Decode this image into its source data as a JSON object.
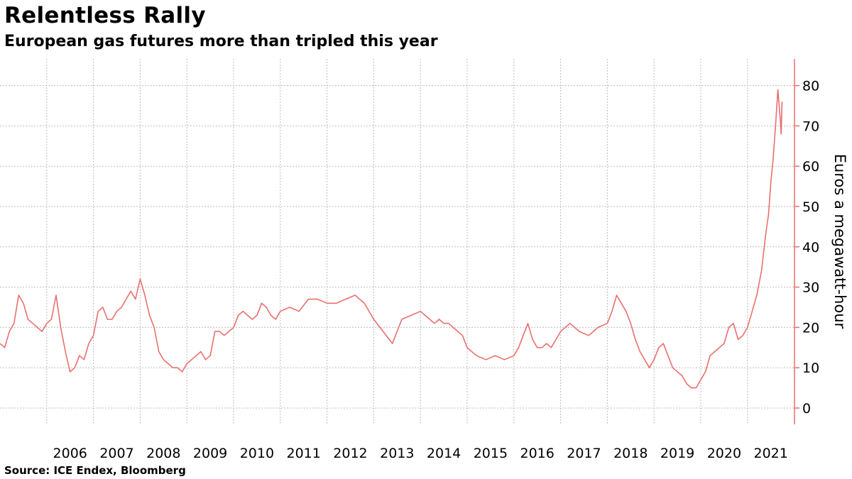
{
  "title": "Relentless Rally",
  "subtitle": "European gas futures more than tripled this year",
  "source": "Source: ICE Endex, Bloomberg",
  "colors": {
    "line": "#e8706e",
    "axis": "#e8706e",
    "grid": "#bdbdbd",
    "text": "#000000"
  },
  "chart_data": {
    "type": "line",
    "title": "Relentless Rally",
    "subtitle": "European gas futures more than tripled this year",
    "ylabel": "Euros a megawatt-hour",
    "xlabel": "",
    "ylim": [
      -5,
      87
    ],
    "xlim": [
      2005.0,
      2021.9
    ],
    "y_axis_side": "right",
    "grid": true,
    "y_ticks": [
      0,
      10,
      20,
      30,
      40,
      50,
      60,
      70,
      80
    ],
    "x_tick_labels": [
      "2006",
      "2007",
      "2008",
      "2009",
      "2010",
      "2011",
      "2012",
      "2013",
      "2014",
      "2015",
      "2016",
      "2017",
      "2018",
      "2019",
      "2020",
      "2021"
    ],
    "series": [
      {
        "x": [
          2005.0,
          2005.1,
          2005.2,
          2005.3,
          2005.4,
          2005.5,
          2005.6,
          2005.7,
          2005.8,
          2005.9,
          2006.0,
          2006.1,
          2006.2,
          2006.3,
          2006.4,
          2006.5,
          2006.6,
          2006.7,
          2006.8,
          2006.9,
          2007.0,
          2007.1,
          2007.2,
          2007.3,
          2007.4,
          2007.5,
          2007.6,
          2007.7,
          2007.8,
          2007.9,
          2008.0,
          2008.1,
          2008.2,
          2008.3,
          2008.4,
          2008.5,
          2008.6,
          2008.7,
          2008.8,
          2008.9,
          2009.0,
          2009.1,
          2009.2,
          2009.3,
          2009.4,
          2009.5,
          2009.6,
          2009.7,
          2009.8,
          2009.9,
          2010.0,
          2010.1,
          2010.2,
          2010.3,
          2010.4,
          2010.5,
          2010.6,
          2010.7,
          2010.8,
          2010.9,
          2011.0,
          2011.2,
          2011.4,
          2011.6,
          2011.8,
          2012.0,
          2012.2,
          2012.4,
          2012.6,
          2012.8,
          2013.0,
          2013.2,
          2013.4,
          2013.6,
          2013.8,
          2014.0,
          2014.1,
          2014.2,
          2014.3,
          2014.4,
          2014.5,
          2014.6,
          2014.7,
          2014.8,
          2014.9,
          2015.0,
          2015.2,
          2015.4,
          2015.6,
          2015.8,
          2016.0,
          2016.1,
          2016.2,
          2016.3,
          2016.4,
          2016.5,
          2016.6,
          2016.7,
          2016.8,
          2016.9,
          2017.0,
          2017.2,
          2017.4,
          2017.6,
          2017.8,
          2018.0,
          2018.1,
          2018.2,
          2018.3,
          2018.4,
          2018.5,
          2018.6,
          2018.7,
          2018.8,
          2018.9,
          2019.0,
          2019.1,
          2019.2,
          2019.3,
          2019.4,
          2019.5,
          2019.6,
          2019.7,
          2019.8,
          2019.9,
          2020.0,
          2020.1,
          2020.2,
          2020.3,
          2020.4,
          2020.5,
          2020.6,
          2020.7,
          2020.8,
          2020.9,
          2021.0,
          2021.1,
          2021.2,
          2021.3,
          2021.4,
          2021.45,
          2021.5,
          2021.55,
          2021.6,
          2021.65,
          2021.7,
          2021.72,
          2021.74
        ],
        "y": [
          16,
          15,
          19,
          21,
          28,
          26,
          22,
          21,
          20,
          19,
          21,
          22,
          28,
          20,
          14,
          9,
          10,
          13,
          12,
          16,
          18,
          24,
          25,
          22,
          22,
          24,
          25,
          27,
          29,
          27,
          32,
          28,
          23,
          20,
          14,
          12,
          11,
          10,
          10,
          9,
          11,
          12,
          13,
          14,
          12,
          13,
          19,
          19,
          18,
          19,
          20,
          23,
          24,
          23,
          22,
          23,
          26,
          25,
          23,
          22,
          24,
          25,
          24,
          27,
          27,
          26,
          26,
          27,
          28,
          26,
          22,
          19,
          16,
          22,
          23,
          24,
          23,
          22,
          21,
          22,
          21,
          21,
          20,
          19,
          18,
          15,
          13,
          12,
          13,
          12,
          13,
          15,
          18,
          21,
          17,
          15,
          15,
          16,
          15,
          17,
          19,
          21,
          19,
          18,
          20,
          21,
          24,
          28,
          26,
          24,
          21,
          17,
          14,
          12,
          10,
          12,
          15,
          16,
          13,
          10,
          9,
          8,
          6,
          5,
          5,
          7,
          9,
          13,
          14,
          15,
          16,
          20,
          21,
          17,
          18,
          20,
          24,
          28,
          34,
          44,
          48,
          56,
          62,
          70,
          79,
          72,
          68,
          76
        ]
      }
    ]
  }
}
